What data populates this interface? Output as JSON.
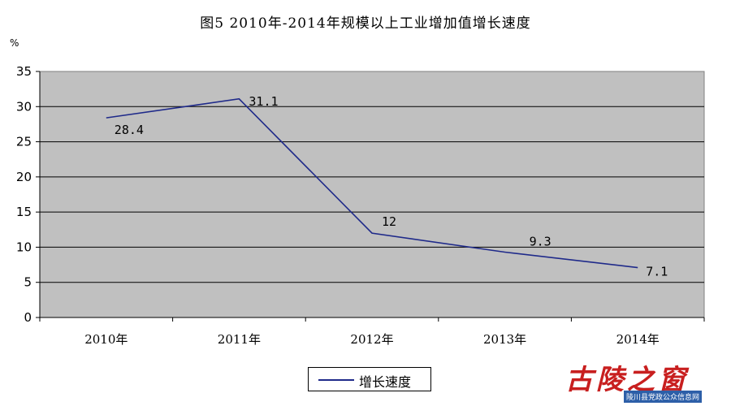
{
  "chart_data": {
    "type": "line",
    "title": "图5   2010年-2014年规模以上工业增加值增长速度",
    "ylabel": "%",
    "xlabel": "",
    "categories": [
      "2010年",
      "2011年",
      "2012年",
      "2013年",
      "2014年"
    ],
    "series": [
      {
        "name": "增长速度",
        "values": [
          28.4,
          31.1,
          12,
          9.3,
          7.1
        ],
        "data_labels": [
          "28.4",
          "31.1",
          "12",
          "9.3",
          "7.1"
        ],
        "color": "#1f2a8a"
      }
    ],
    "ylim": [
      0,
      35
    ],
    "yticks": [
      "0",
      "5",
      "10",
      "15",
      "20",
      "25",
      "30",
      "35"
    ],
    "grid": true,
    "plot_background": "#c0c0c0",
    "legend_position": "bottom"
  },
  "watermark": {
    "main_text": "古陵之窗",
    "sub_text": "陵川县党政公众信息网",
    "main_color": "#c81f1f",
    "sub_bg_color": "#2d5fa8"
  }
}
